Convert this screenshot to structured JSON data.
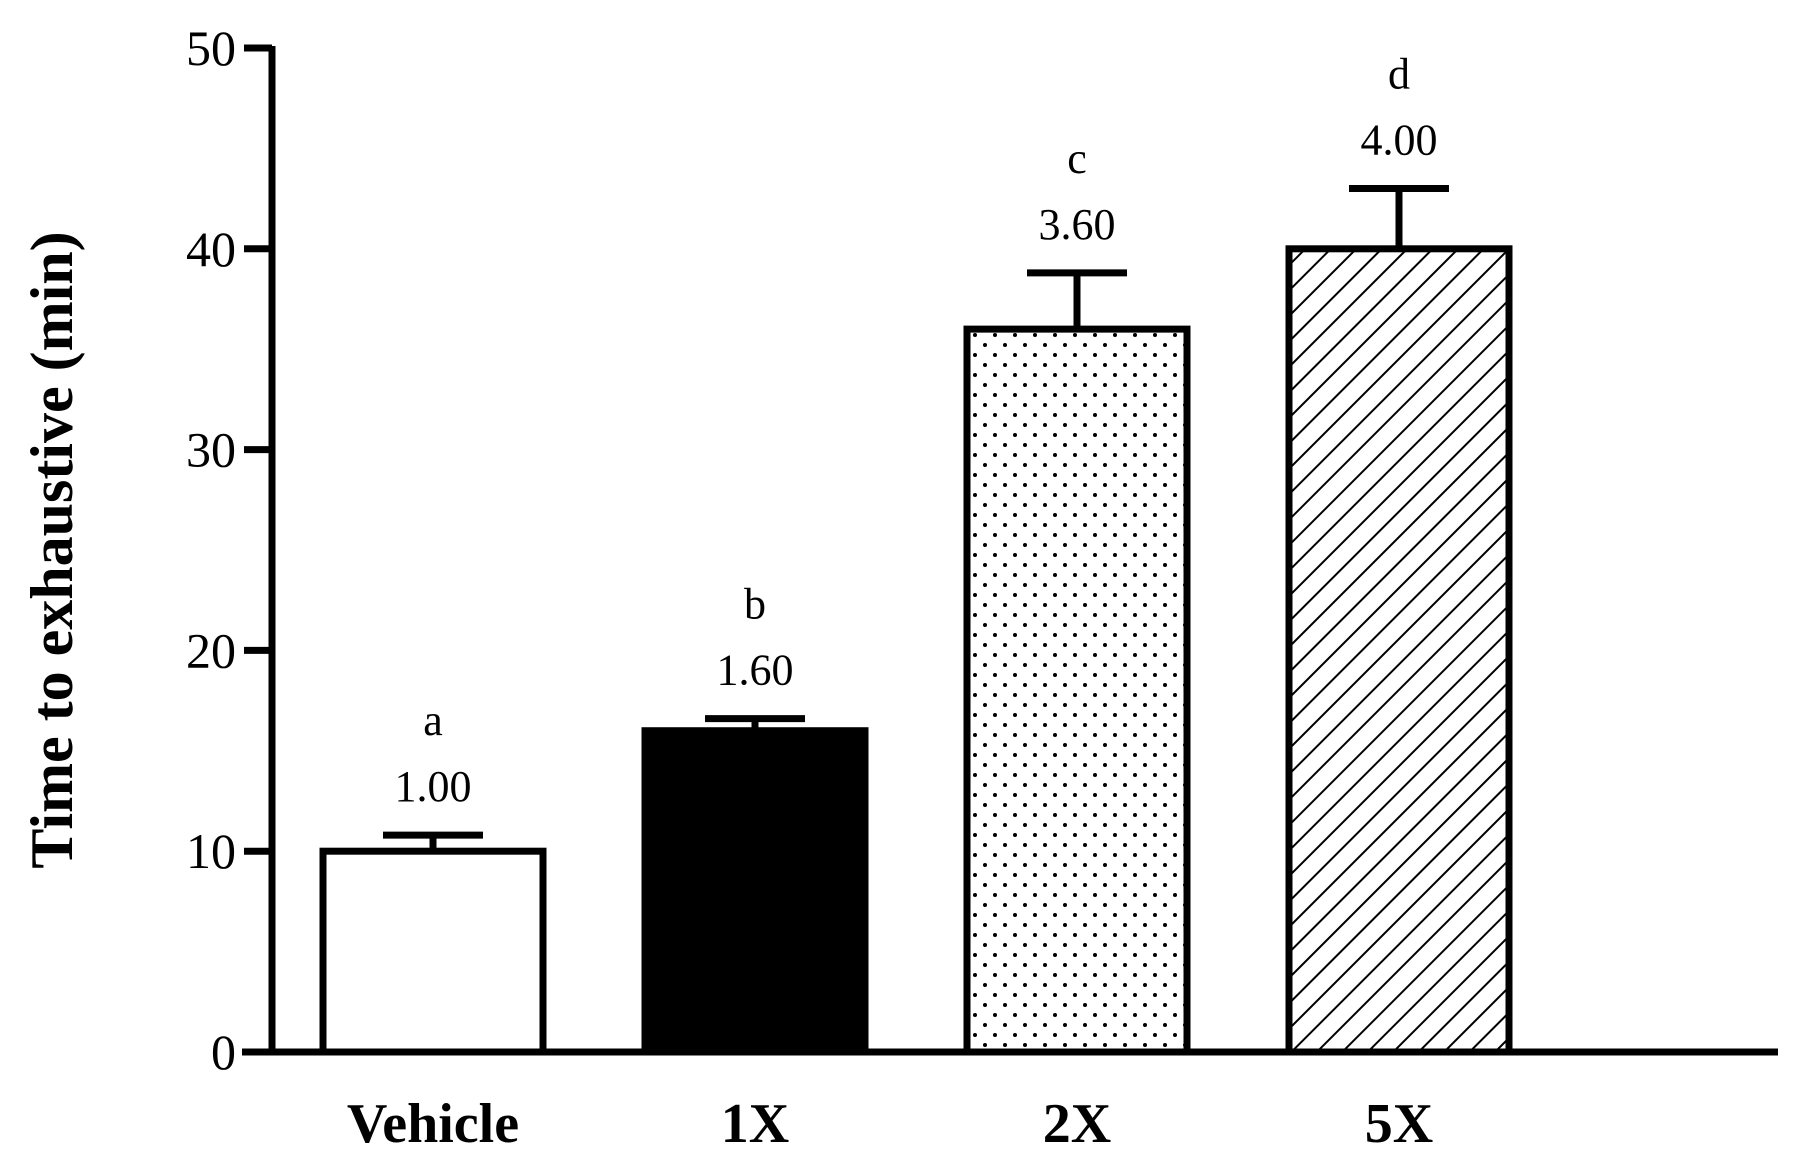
{
  "chart_data": {
    "type": "bar",
    "title": "",
    "xlabel": "",
    "ylabel": "Time to exhaustive (min)",
    "ylim": [
      0,
      50
    ],
    "yticks": [
      0,
      10,
      20,
      30,
      40,
      50
    ],
    "grid": false,
    "categories": [
      "Vehicle",
      "1X",
      "2X",
      "5X"
    ],
    "values": [
      10.0,
      16.0,
      36.0,
      40.0
    ],
    "errors": [
      0.8,
      0.6,
      2.8,
      3.0
    ],
    "ratio_labels": [
      "1.00",
      "1.60",
      "3.60",
      "4.00"
    ],
    "significance_letters": [
      "a",
      "b",
      "c",
      "d"
    ],
    "fills": [
      "white",
      "black",
      "dots",
      "hatch"
    ]
  },
  "colors": {
    "stroke": "#000000",
    "background": "#ffffff"
  }
}
